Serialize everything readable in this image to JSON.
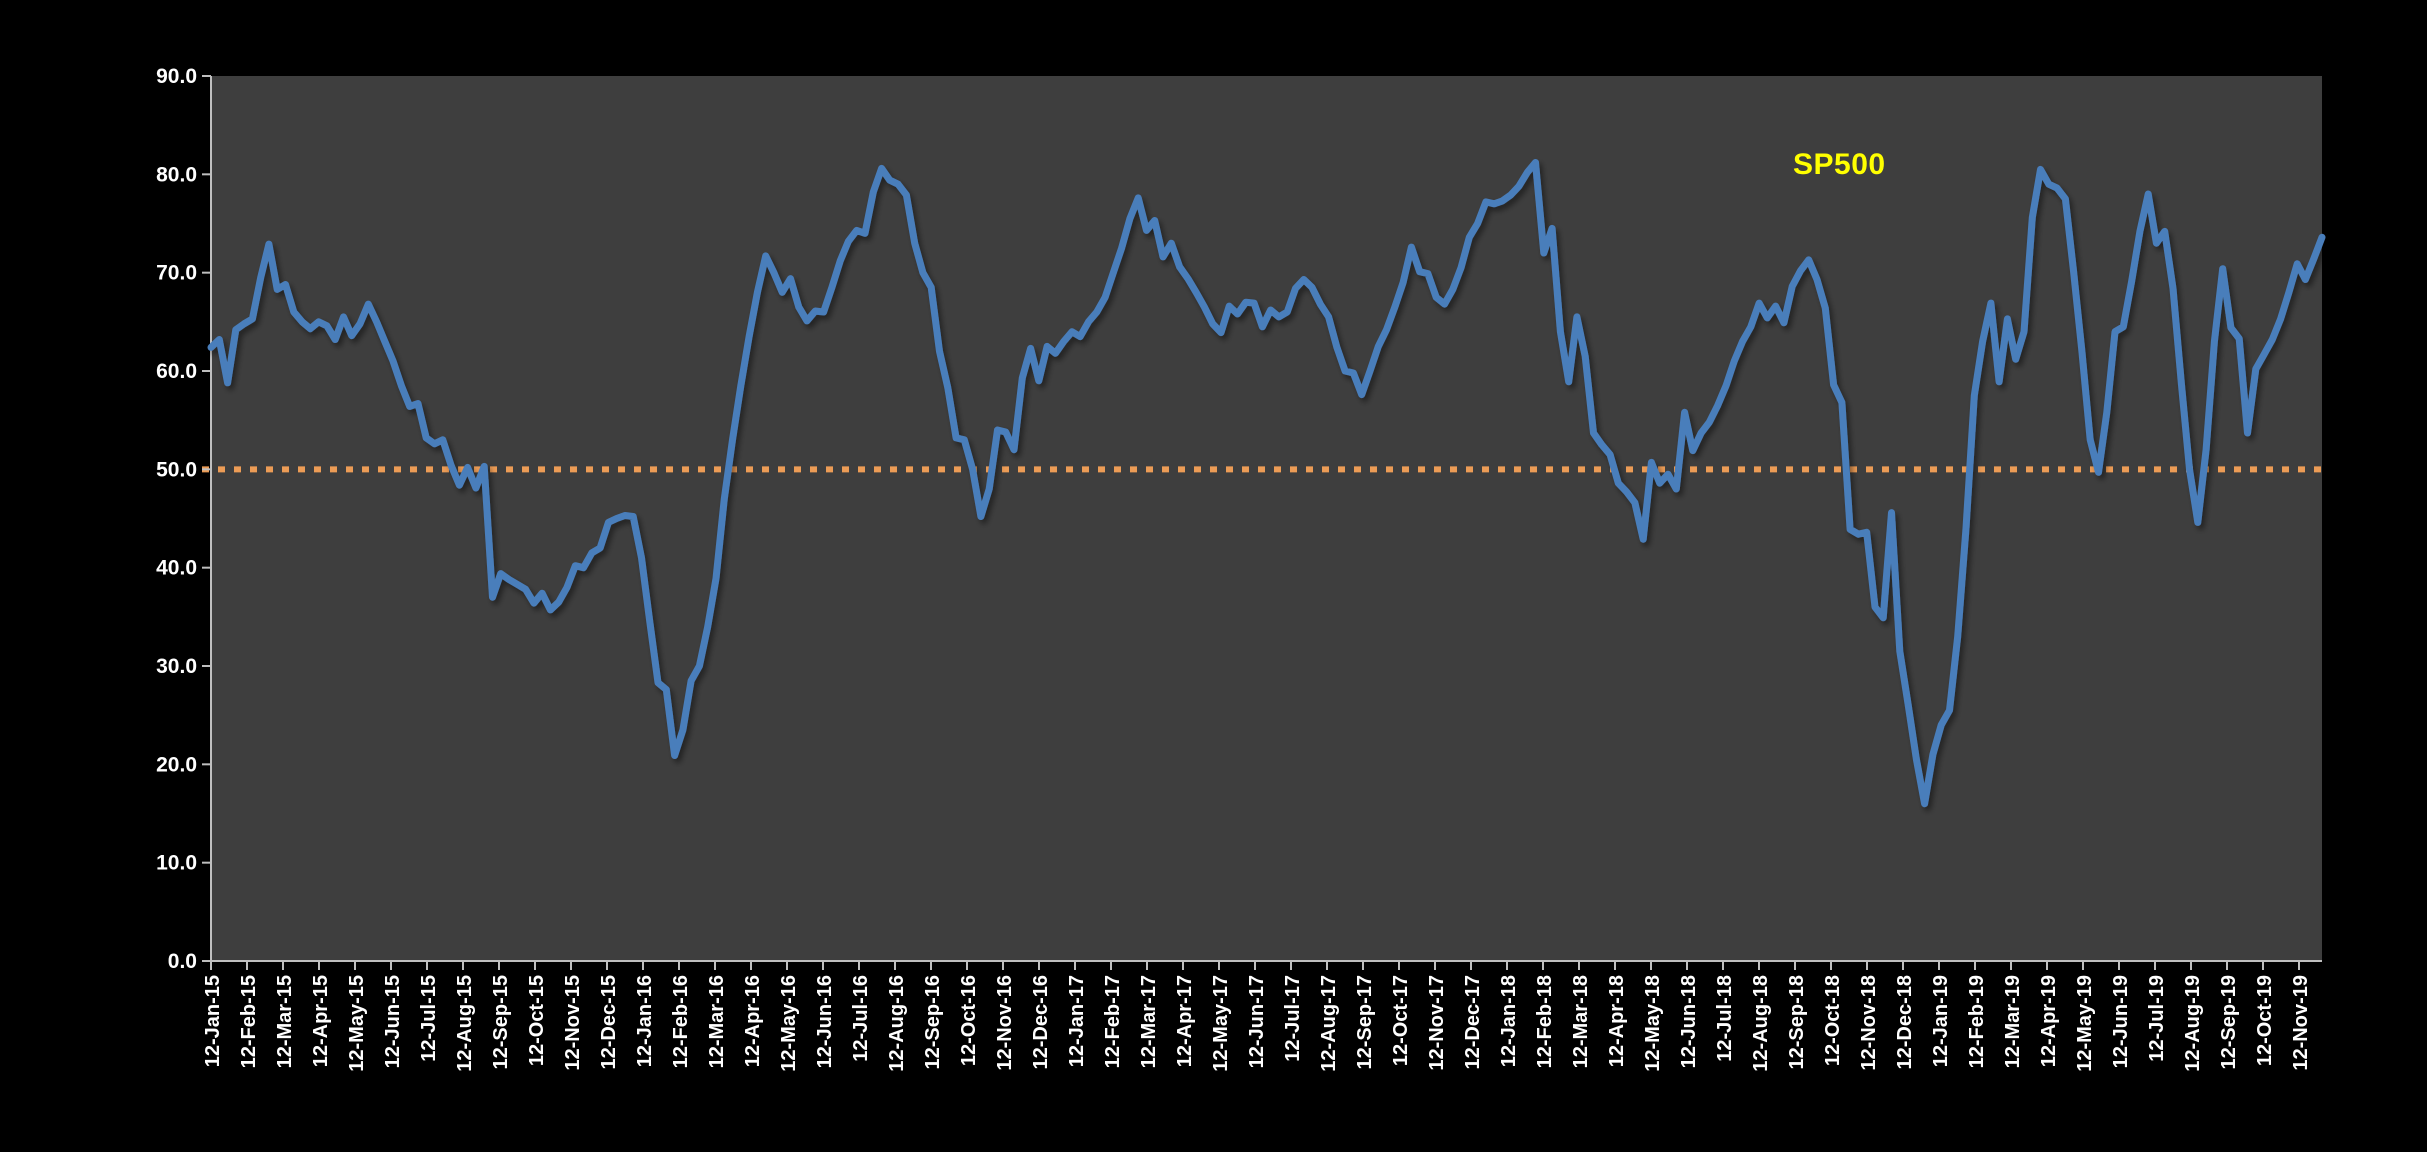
{
  "chart_data": {
    "type": "line",
    "title": "",
    "xlabel": "",
    "ylabel": "",
    "ylim": [
      0,
      90
    ],
    "ytick_step": 10,
    "ytick_labels": [
      "90.0",
      "80.0",
      "70.0",
      "60.0",
      "50.0",
      "40.0",
      "30.0",
      "20.0",
      "10.0",
      "0.0"
    ],
    "grid": "off",
    "legend_position": "top-right-inside",
    "legend": {
      "text": "SP500",
      "color": "#ffff00"
    },
    "background": {
      "outer": "#000000",
      "plot": "#3e3e3e"
    },
    "axis_color": "#bfbfbf",
    "reference_line": {
      "value": 50.0,
      "color": "#ec9c56",
      "style": "dotted"
    },
    "x_tick_labels": [
      "12-Jan-15",
      "12-Feb-15",
      "12-Mar-15",
      "12-Apr-15",
      "12-May-15",
      "12-Jun-15",
      "12-Jul-15",
      "12-Aug-15",
      "12-Sep-15",
      "12-Oct-15",
      "12-Nov-15",
      "12-Dec-15",
      "12-Jan-16",
      "12-Feb-16",
      "12-Mar-16",
      "12-Apr-16",
      "12-May-16",
      "12-Jun-16",
      "12-Jul-16",
      "12-Aug-16",
      "12-Sep-16",
      "12-Oct-16",
      "12-Nov-16",
      "12-Dec-16",
      "12-Jan-17",
      "12-Feb-17",
      "12-Mar-17",
      "12-Apr-17",
      "12-May-17",
      "12-Jun-17",
      "12-Jul-17",
      "12-Aug-17",
      "12-Sep-17",
      "12-Oct-17",
      "12-Nov-17",
      "12-Dec-17",
      "12-Jan-18",
      "12-Feb-18",
      "12-Mar-18",
      "12-Apr-18",
      "12-May-18",
      "12-Jun-18",
      "12-Jul-18",
      "12-Aug-18",
      "12-Sep-18",
      "12-Oct-18",
      "12-Nov-18",
      "12-Dec-18",
      "12-Jan-19",
      "12-Feb-19",
      "12-Mar-19",
      "12-Apr-19",
      "12-May-19",
      "12-Jun-19",
      "12-Jul-19",
      "12-Aug-19",
      "12-Sep-19",
      "12-Oct-19",
      "12-Nov-19"
    ],
    "series": [
      {
        "name": "SP500",
        "color": "#4a7ebb",
        "frequency": "weekly",
        "start_label": "12-Jan-15",
        "end_label": "02-Dec-19",
        "values": [
          62.4,
          63.2,
          58.8,
          64.2,
          64.8,
          65.3,
          69.5,
          72.9,
          68.3,
          68.8,
          66.0,
          65.0,
          64.3,
          65.0,
          64.6,
          63.2,
          65.5,
          63.6,
          64.8,
          66.8,
          65.0,
          63.0,
          61.0,
          58.5,
          56.4,
          56.7,
          53.2,
          52.6,
          53.0,
          50.4,
          48.4,
          50.2,
          48.1,
          50.3,
          37.0,
          39.4,
          38.8,
          38.3,
          37.8,
          36.4,
          37.4,
          35.7,
          36.5,
          38.0,
          40.2,
          40.0,
          41.5,
          42.0,
          44.6,
          45.0,
          45.3,
          45.2,
          41.0,
          34.5,
          28.3,
          27.6,
          20.9,
          23.5,
          28.5,
          30.0,
          34.0,
          38.9,
          47.0,
          53.0,
          58.5,
          63.5,
          68.0,
          71.7,
          70.0,
          68.0,
          69.4,
          66.5,
          65.1,
          66.1,
          66.0,
          68.5,
          71.2,
          73.2,
          74.3,
          74.0,
          78.2,
          80.6,
          79.4,
          79.0,
          77.9,
          73.0,
          70.0,
          68.5,
          62.0,
          58.3,
          53.2,
          53.0,
          50.0,
          45.2,
          48.0,
          54.0,
          53.8,
          52.0,
          59.3,
          62.3,
          59.0,
          62.5,
          61.8,
          63.0,
          64.0,
          63.5,
          65.0,
          66.0,
          67.5,
          70.0,
          72.5,
          75.5,
          77.6,
          74.3,
          75.3,
          71.6,
          73.0,
          70.6,
          69.4,
          68.0,
          66.5,
          64.8,
          63.9,
          66.6,
          65.8,
          67.0,
          66.9,
          64.5,
          66.2,
          65.5,
          66.0,
          68.4,
          69.3,
          68.5,
          66.8,
          65.5,
          62.4,
          60.0,
          59.8,
          57.6,
          60.0,
          62.5,
          64.2,
          66.5,
          69.0,
          72.6,
          70.1,
          69.9,
          67.5,
          66.8,
          68.3,
          70.5,
          73.6,
          75.0,
          77.2,
          77.0,
          77.3,
          77.9,
          78.8,
          80.2,
          81.2,
          72.0,
          74.5,
          64.0,
          58.9,
          65.5,
          61.5,
          53.7,
          52.5,
          51.5,
          48.6,
          47.7,
          46.6,
          42.9,
          50.7,
          48.6,
          49.5,
          48.0,
          55.8,
          51.9,
          53.7,
          54.8,
          56.5,
          58.5,
          61.0,
          63.0,
          64.5,
          66.9,
          65.4,
          66.6,
          64.9,
          68.6,
          70.2,
          71.3,
          69.3,
          66.4,
          58.6,
          56.8,
          43.9,
          43.4,
          43.6,
          36.0,
          34.9,
          45.6,
          31.5,
          26.1,
          20.5,
          16.0,
          21.0,
          24.0,
          25.5,
          33.0,
          44.0,
          57.5,
          63.0,
          66.9,
          58.9,
          65.3,
          61.2,
          64.0,
          75.6,
          80.5,
          79.0,
          78.6,
          77.5,
          70.1,
          62.0,
          53.0,
          49.7,
          55.8,
          64.0,
          64.5,
          69.1,
          74.2,
          78.0,
          73.0,
          74.2,
          68.4,
          58.8,
          50.0,
          44.6,
          52.0,
          63.0,
          70.4,
          64.4,
          63.3,
          53.7,
          60.2,
          61.7,
          63.2,
          65.3,
          68.0,
          70.9,
          69.3,
          71.4,
          73.6
        ]
      }
    ]
  }
}
